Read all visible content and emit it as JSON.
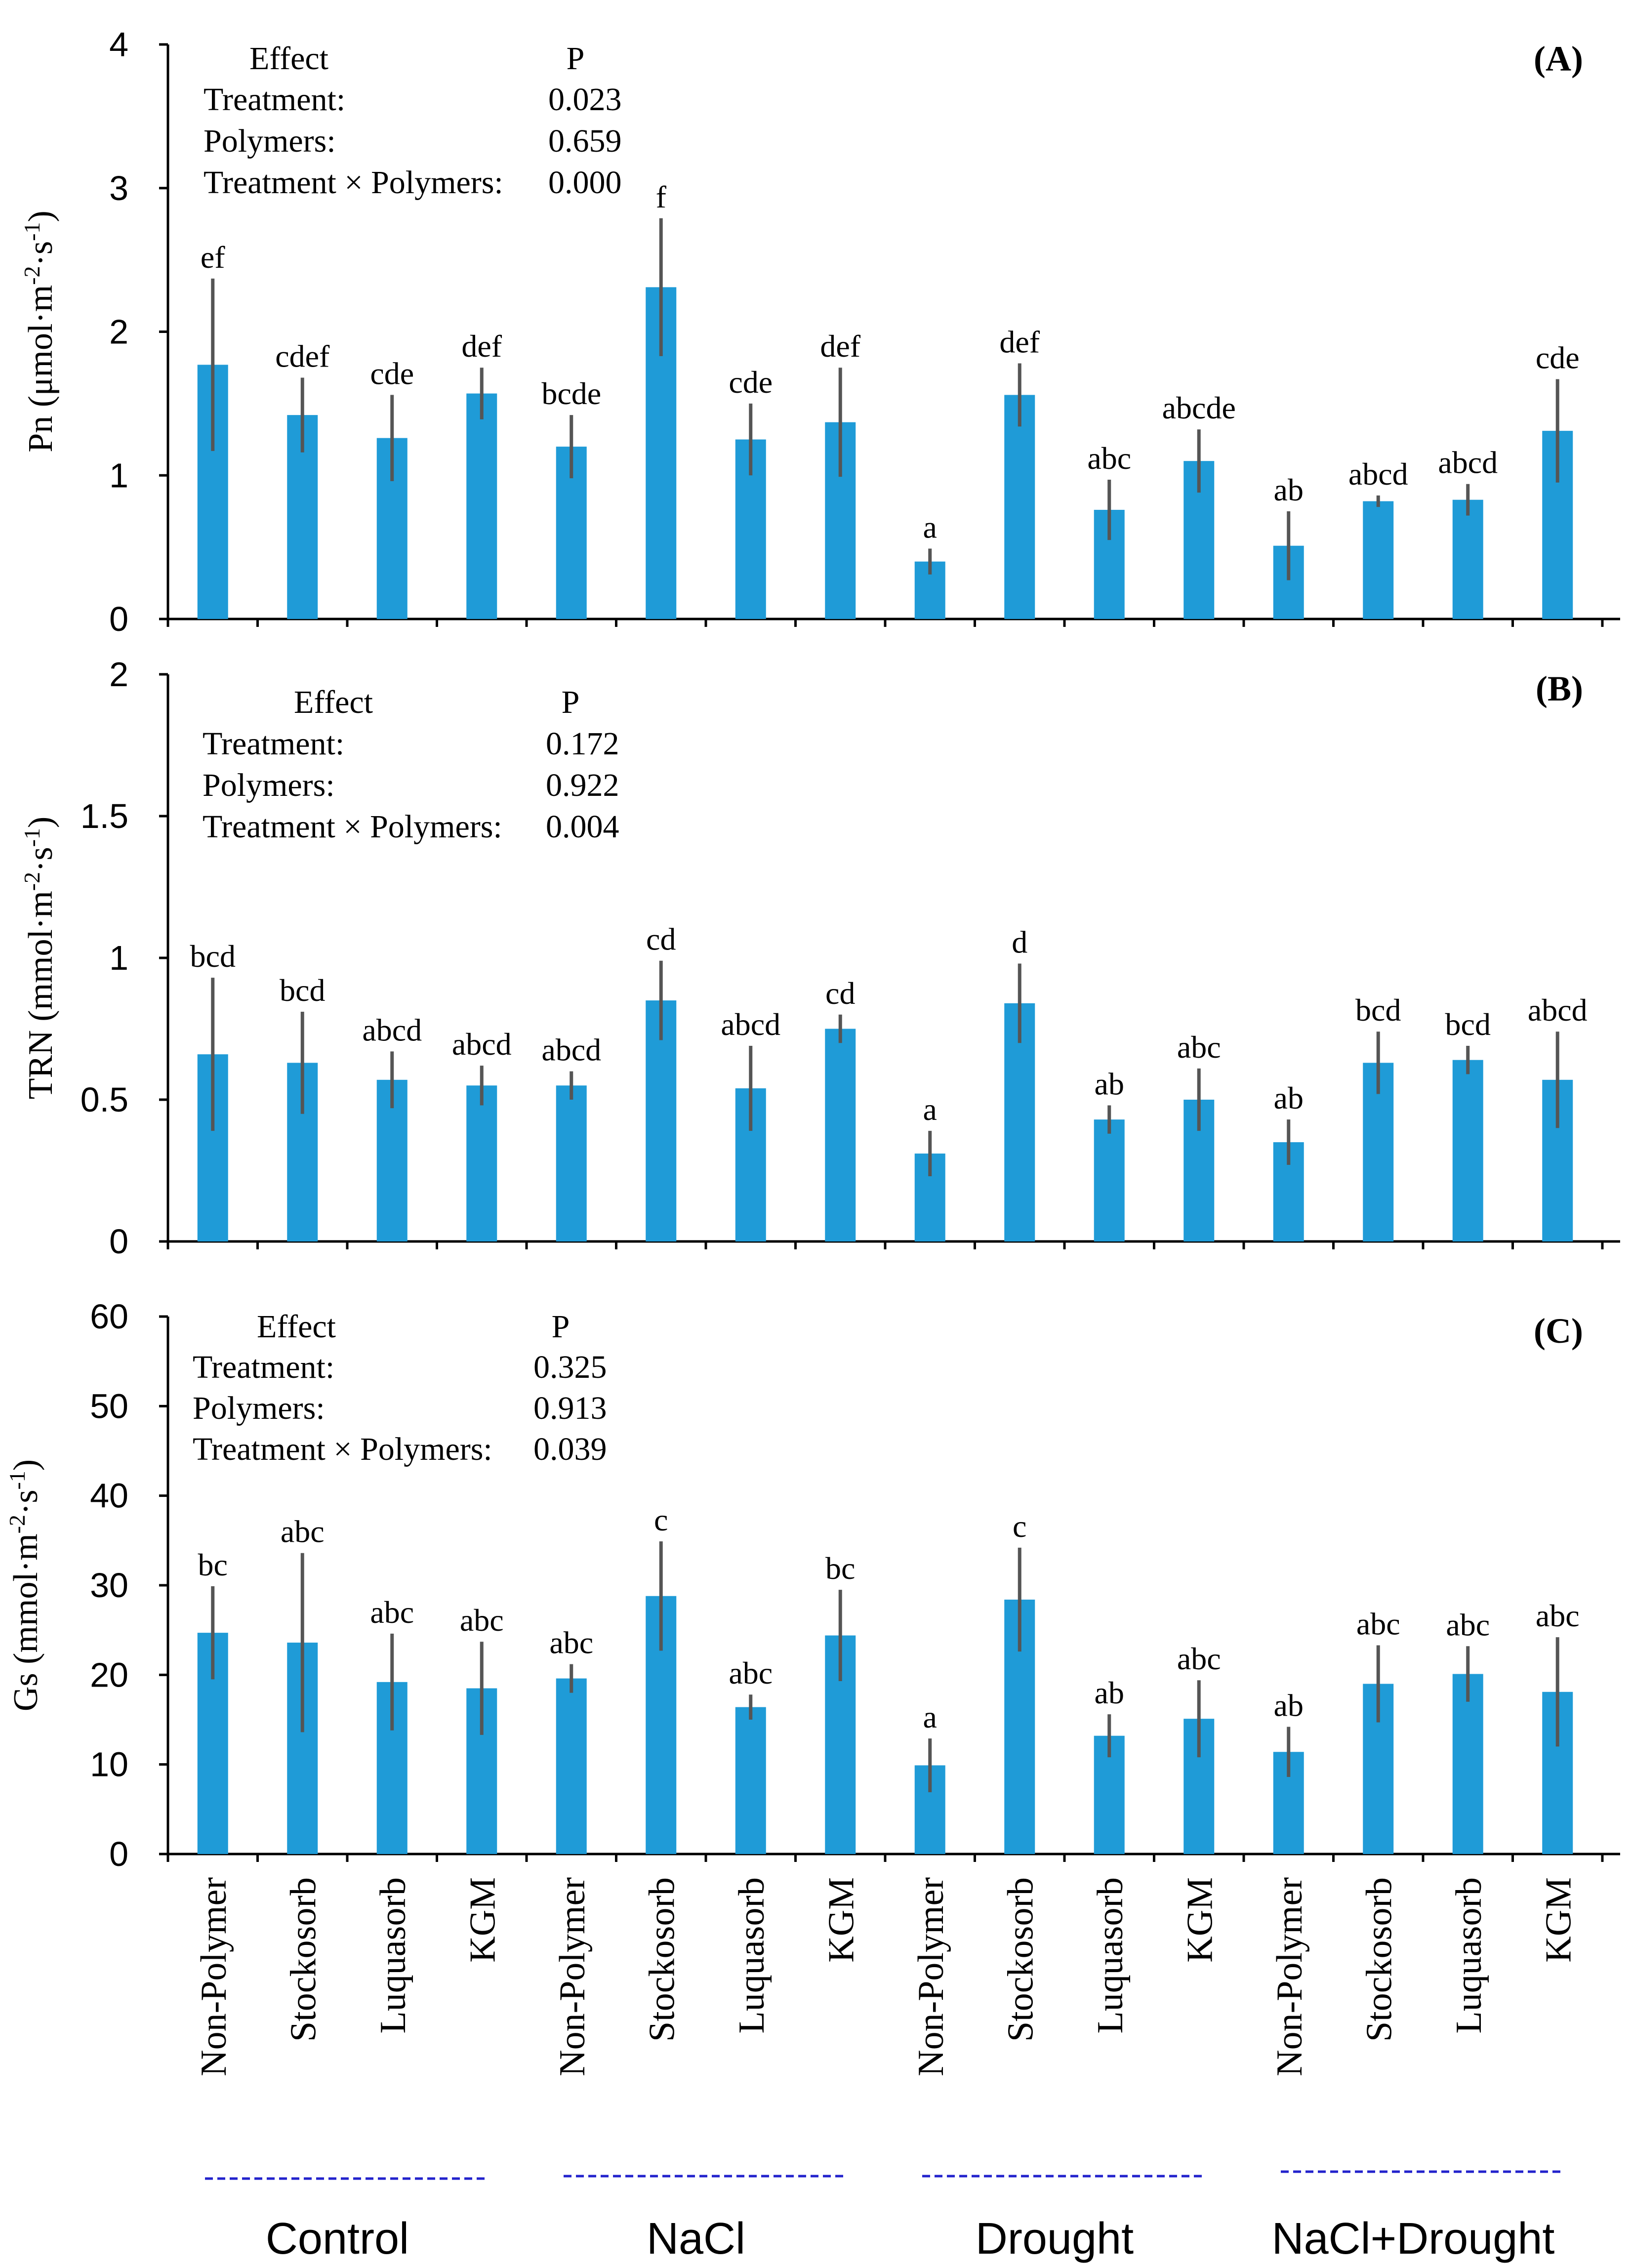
{
  "chart_data": {
    "type": "bar",
    "bar_color": "#1f9bd7",
    "error_color": "#555555",
    "group_line_color": "#2222cc",
    "categories": [
      "Non-Polymer",
      "Stockosorb",
      "Luquasorb",
      "KGM",
      "Non-Polymer",
      "Stockosorb",
      "Luquasorb",
      "KGM",
      "Non-Polymer",
      "Stockosorb",
      "Luquasorb",
      "KGM",
      "Non-Polymer",
      "Stockosorb",
      "Luquasorb",
      "KGM"
    ],
    "groups": [
      "Control",
      "NaCl",
      "Drought",
      "NaCl+Drought"
    ],
    "panels": [
      {
        "id": "A",
        "panel_label": "(A)",
        "ylabel_main": "Pn (μmol·m",
        "ylabel_sup1": "-2",
        "ylabel_mid": "·s",
        "ylabel_sup2": "-1",
        "ylabel_end": ")",
        "ylim": [
          0,
          4
        ],
        "yticks": [
          "0",
          "1",
          "2",
          "3",
          "4"
        ],
        "values": [
          1.77,
          1.42,
          1.26,
          1.57,
          1.2,
          2.31,
          1.25,
          1.37,
          0.4,
          1.56,
          0.76,
          1.1,
          0.51,
          0.82,
          0.83,
          1.31
        ],
        "errors": [
          0.6,
          0.26,
          0.3,
          0.18,
          0.22,
          0.48,
          0.25,
          0.38,
          0.09,
          0.22,
          0.21,
          0.22,
          0.24,
          0.04,
          0.11,
          0.36
        ],
        "letters": [
          "ef",
          "cdef",
          "cde",
          "def",
          "bcde",
          "f",
          "cde",
          "def",
          "a",
          "def",
          "abc",
          "abcde",
          "ab",
          "abcd",
          "abcd",
          "cde"
        ],
        "stats": {
          "effect_header": "Effect",
          "p_header": "P",
          "rows": [
            {
              "label": "Treatment:",
              "p": "0.023"
            },
            {
              "label": "Polymers:",
              "p": "0.659"
            },
            {
              "label": "Treatment × Polymers:",
              "p": "0.000"
            }
          ]
        }
      },
      {
        "id": "B",
        "panel_label": "(B)",
        "ylabel_main": "TRN (mmol·m",
        "ylabel_sup1": "-2",
        "ylabel_mid": "·s",
        "ylabel_sup2": "-1",
        "ylabel_end": ")",
        "ylim": [
          0,
          2
        ],
        "yticks": [
          "0",
          "0.5",
          "1",
          "1.5",
          "2"
        ],
        "values": [
          0.66,
          0.63,
          0.57,
          0.55,
          0.55,
          0.85,
          0.54,
          0.75,
          0.31,
          0.84,
          0.43,
          0.5,
          0.35,
          0.63,
          0.64,
          0.57
        ],
        "errors": [
          0.27,
          0.18,
          0.1,
          0.07,
          0.05,
          0.14,
          0.15,
          0.05,
          0.08,
          0.14,
          0.05,
          0.11,
          0.08,
          0.11,
          0.05,
          0.17
        ],
        "letters": [
          "bcd",
          "bcd",
          "abcd",
          "abcd",
          "abcd",
          "cd",
          "abcd",
          "cd",
          "a",
          "d",
          "ab",
          "abc",
          "ab",
          "bcd",
          "bcd",
          "abcd"
        ],
        "stats": {
          "effect_header": "Effect",
          "p_header": "P",
          "rows": [
            {
              "label": "Treatment:",
              "p": "0.172"
            },
            {
              "label": "Polymers:",
              "p": "0.922"
            },
            {
              "label": "Treatment × Polymers:",
              "p": "0.004"
            }
          ]
        }
      },
      {
        "id": "C",
        "panel_label": "(C)",
        "ylabel_main": "Gs (mmol·m",
        "ylabel_sup1": "-2",
        "ylabel_mid": "·s",
        "ylabel_sup2": "-1",
        "ylabel_end": ")",
        "ylim": [
          0,
          60
        ],
        "yticks": [
          "0",
          "10",
          "20",
          "30",
          "40",
          "50",
          "60"
        ],
        "values": [
          24.7,
          23.6,
          19.2,
          18.5,
          19.6,
          28.8,
          16.4,
          24.4,
          9.9,
          28.4,
          13.2,
          15.1,
          11.4,
          19.0,
          20.1,
          18.1
        ],
        "errors": [
          5.2,
          10.0,
          5.4,
          5.2,
          1.6,
          6.1,
          1.4,
          5.1,
          3.0,
          5.8,
          2.4,
          4.3,
          2.8,
          4.3,
          3.1,
          6.1
        ],
        "letters": [
          "bc",
          "abc",
          "abc",
          "abc",
          "abc",
          "c",
          "abc",
          "bc",
          "a",
          "c",
          "ab",
          "abc",
          "ab",
          "abc",
          "abc",
          "abc"
        ],
        "stats": {
          "effect_header": "Effect",
          "p_header": "P",
          "rows": [
            {
              "label": "Treatment:",
              "p": "0.325"
            },
            {
              "label": "Polymers:",
              "p": "0.913"
            },
            {
              "label": "Treatment × Polymers:",
              "p": "0.039"
            }
          ]
        }
      }
    ]
  }
}
